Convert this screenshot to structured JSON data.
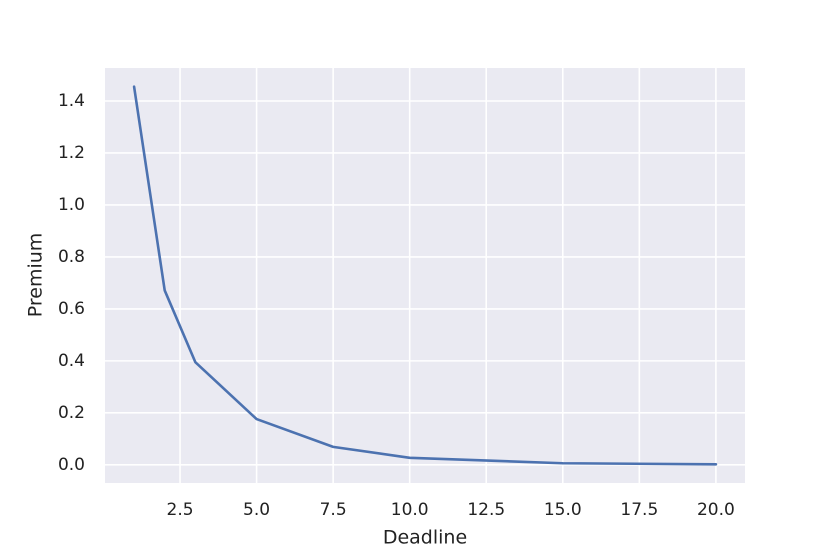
{
  "chart_data": {
    "type": "line",
    "xlabel": "Deadline",
    "ylabel": "Premium",
    "x": [
      1,
      2,
      3,
      5,
      7.5,
      10,
      15,
      20
    ],
    "series": [
      {
        "color": "#4c72b0",
        "values": [
          1.455,
          0.671,
          0.395,
          0.176,
          0.069,
          0.027,
          0.006,
          0.002
        ]
      }
    ],
    "xlim": [
      0.05,
      20.95
    ],
    "xticks": [
      {
        "value": 2.5,
        "label": "2.5"
      },
      {
        "value": 5,
        "label": "5.0"
      },
      {
        "value": 7.5,
        "label": "7.5"
      },
      {
        "value": 10,
        "label": "10.0"
      },
      {
        "value": 12.5,
        "label": "12.5"
      },
      {
        "value": 15,
        "label": "15.0"
      },
      {
        "value": 17.5,
        "label": "17.5"
      },
      {
        "value": 20,
        "label": "20.0"
      }
    ],
    "ylim": [
      -0.07,
      1.527
    ],
    "yticks": [
      {
        "value": 0,
        "label": "0.0"
      },
      {
        "value": 0.2,
        "label": "0.2"
      },
      {
        "value": 0.4,
        "label": "0.4"
      },
      {
        "value": 0.6,
        "label": "0.6"
      },
      {
        "value": 0.8,
        "label": "0.8"
      },
      {
        "value": 1,
        "label": "1.0"
      },
      {
        "value": 1.2,
        "label": "1.2"
      },
      {
        "value": 1.4,
        "label": "1.4"
      }
    ],
    "grid": true
  }
}
